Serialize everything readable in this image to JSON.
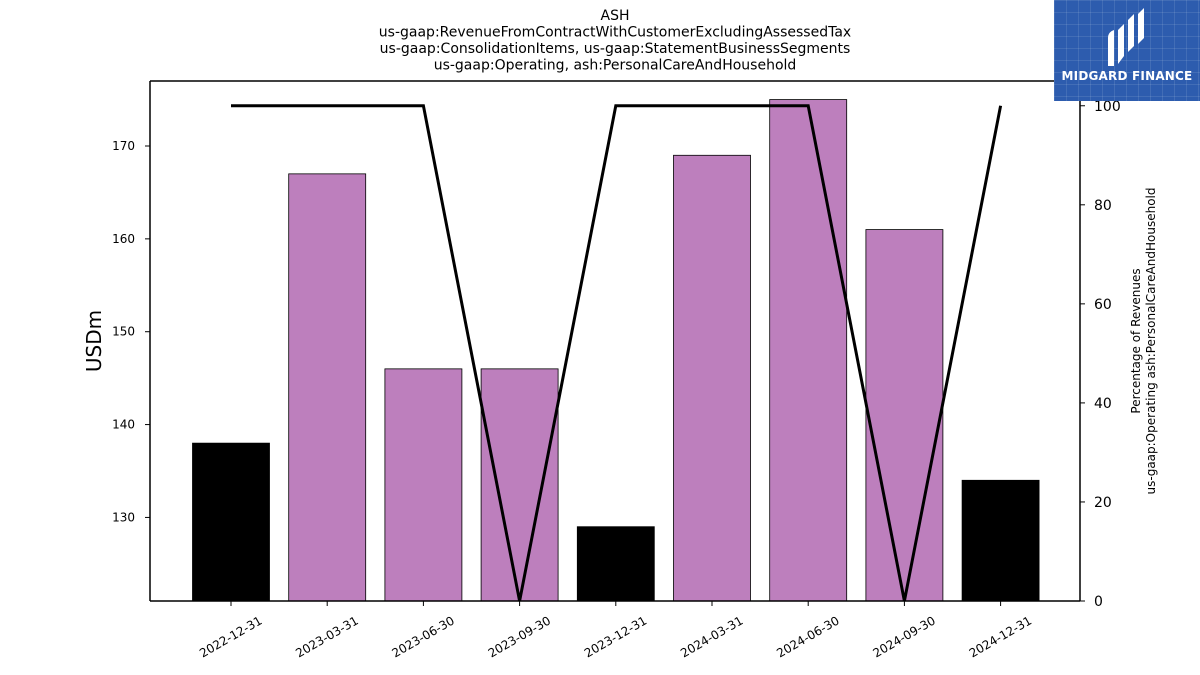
{
  "chart_data": {
    "type": "bar",
    "title_lines": [
      "ASH",
      "us-gaap:RevenueFromContractWithCustomerExcludingAssessedTax",
      "us-gaap:ConsolidationItems, us-gaap:StatementBusinessSegments",
      "us-gaap:Operating, ash:PersonalCareAndHousehold"
    ],
    "categories": [
      "2022-12-31",
      "2023-03-31",
      "2023-06-30",
      "2023-09-30",
      "2023-12-31",
      "2024-03-31",
      "2024-06-30",
      "2024-09-30",
      "2024-12-31"
    ],
    "values": [
      138,
      167,
      146,
      146,
      129,
      169,
      175,
      161,
      134
    ],
    "bar_colors": [
      "#000000",
      "#bd7fbd",
      "#bd7fbd",
      "#bd7fbd",
      "#000000",
      "#bd7fbd",
      "#bd7fbd",
      "#bd7fbd",
      "#000000"
    ],
    "ylabel": "USDm",
    "ylim": [
      121,
      177
    ],
    "yticks": [
      130,
      140,
      150,
      160,
      170
    ],
    "secondary": {
      "type": "line",
      "values": [
        100,
        100,
        100,
        0,
        100,
        100,
        100,
        0,
        100
      ],
      "ylabel_lines": [
        "Percentage of Revenues",
        "us-gaap:Operating ash:PersonalCareAndHousehold"
      ],
      "ylim": [
        0,
        105
      ],
      "yticks": [
        0,
        20,
        40,
        60,
        80,
        100
      ],
      "color": "#000000"
    },
    "grid": false
  },
  "logo": {
    "brand": "MIDGARD FINANCE",
    "color": "#2d5cae"
  }
}
